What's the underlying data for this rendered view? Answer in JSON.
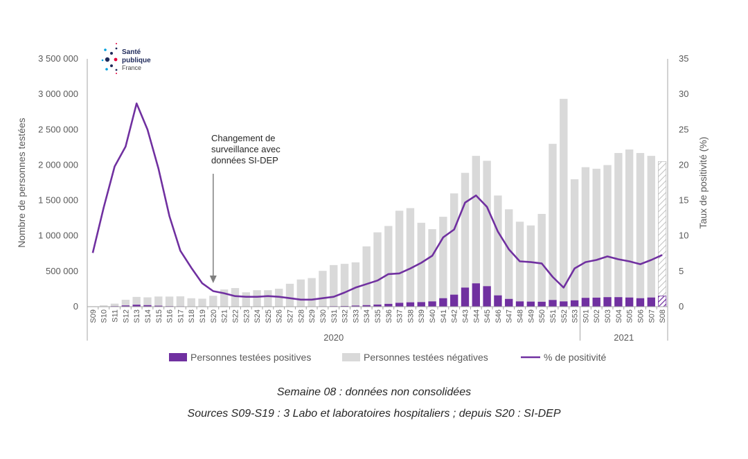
{
  "logo": {
    "line1": "Santé",
    "line2": "publique",
    "line3": "France"
  },
  "annotation": {
    "lines": [
      "Changement de",
      "surveillance avec",
      "données SI-DEP"
    ],
    "week": "S20"
  },
  "captions": {
    "line1": "Semaine 08 : données non consolidées",
    "line2": "Sources S09-S19 : 3 Labo et laboratoires hospitaliers ; depuis S20 : SI-DEP"
  },
  "colors": {
    "positive": "#7030a0",
    "negative": "#d9d9d9",
    "line": "#7030a0",
    "axis": "#a6a6a6",
    "text": "#595959"
  },
  "chart_data": {
    "type": "bar+line",
    "title": "",
    "ylabel": "Nombre de personnes testées",
    "y2label": "Taux de positivité (%)",
    "ylim": [
      0,
      3500000
    ],
    "y2lim": [
      0,
      35
    ],
    "ytick_labels": [
      "0",
      "500 000",
      "1 000 000",
      "1 500 000",
      "2 000 000",
      "2 500 000",
      "3 000 000",
      "3 500 000"
    ],
    "y2tick_labels": [
      "0",
      "5",
      "10",
      "15",
      "20",
      "25",
      "30",
      "35"
    ],
    "categories": [
      "S09",
      "S10",
      "S11",
      "S12",
      "S13",
      "S14",
      "S15",
      "S16",
      "S17",
      "S18",
      "S19",
      "S20",
      "S21",
      "S22",
      "S23",
      "S24",
      "S25",
      "S26",
      "S27",
      "S28",
      "S29",
      "S30",
      "S31",
      "S32",
      "S33",
      "S34",
      "S35",
      "S36",
      "S37",
      "S38",
      "S39",
      "S40",
      "S41",
      "S42",
      "S43",
      "S44",
      "S45",
      "S46",
      "S47",
      "S48",
      "S49",
      "S50",
      "S51",
      "S52",
      "S53",
      "S01",
      "S02",
      "S03",
      "S04",
      "S05",
      "S06",
      "S07",
      "S08"
    ],
    "year_groups": [
      {
        "label": "2020",
        "start": "S09",
        "end": "S53"
      },
      {
        "label": "2021",
        "start": "S01",
        "end": "S08"
      }
    ],
    "series": [
      {
        "name": "Personnes testées positives",
        "kind": "bar",
        "values": [
          2000,
          4000,
          8000,
          18000,
          28000,
          22000,
          14000,
          8000,
          6000,
          4000,
          3000,
          4000,
          3000,
          3000,
          3000,
          3000,
          3000,
          4000,
          4000,
          4000,
          4000,
          6000,
          8000,
          10000,
          16000,
          22000,
          30000,
          40000,
          55000,
          62000,
          65000,
          75000,
          120000,
          170000,
          270000,
          330000,
          290000,
          160000,
          110000,
          75000,
          72000,
          70000,
          95000,
          75000,
          90000,
          125000,
          128000,
          135000,
          135000,
          130000,
          120000,
          130000,
          150000
        ]
      },
      {
        "name": "Personnes testées négatives",
        "kind": "bar",
        "values": [
          5000,
          15000,
          35000,
          80000,
          110000,
          110000,
          130000,
          135000,
          140000,
          115000,
          110000,
          150000,
          240000,
          260000,
          200000,
          230000,
          230000,
          250000,
          320000,
          380000,
          400000,
          500000,
          580000,
          595000,
          610000,
          830000,
          1020000,
          1100000,
          1300000,
          1330000,
          1120000,
          1020000,
          1150000,
          1430000,
          1620000,
          1800000,
          1770000,
          1410000,
          1265000,
          1125000,
          1075000,
          1240000,
          2205000,
          2860000,
          1710000,
          1845000,
          1820000,
          1865000,
          2035000,
          2090000,
          2050000,
          2000000,
          1900000
        ]
      },
      {
        "name": "% de positivité",
        "kind": "line",
        "axis": "right",
        "values": [
          7.6,
          14,
          19.8,
          22.6,
          28.7,
          25,
          19.5,
          12.8,
          7.9,
          5.5,
          3.3,
          2.2,
          1.9,
          1.5,
          1.4,
          1.4,
          1.5,
          1.4,
          1.2,
          1,
          1,
          1.2,
          1.4,
          2,
          2.7,
          3.2,
          3.7,
          4.6,
          4.7,
          5.4,
          6.2,
          7.2,
          9.8,
          10.9,
          14.7,
          15.7,
          14.1,
          10.6,
          8.1,
          6.4,
          6.3,
          6.1,
          4.2,
          2.7,
          5.4,
          6.3,
          6.6,
          7.1,
          6.7,
          6.4,
          6,
          6.6,
          7.3
        ]
      }
    ],
    "legend": [
      "Personnes testées positives",
      "Personnes testées négatives",
      "% de positivité"
    ],
    "legend_position": "bottom",
    "hatched_last_category": "S08"
  }
}
